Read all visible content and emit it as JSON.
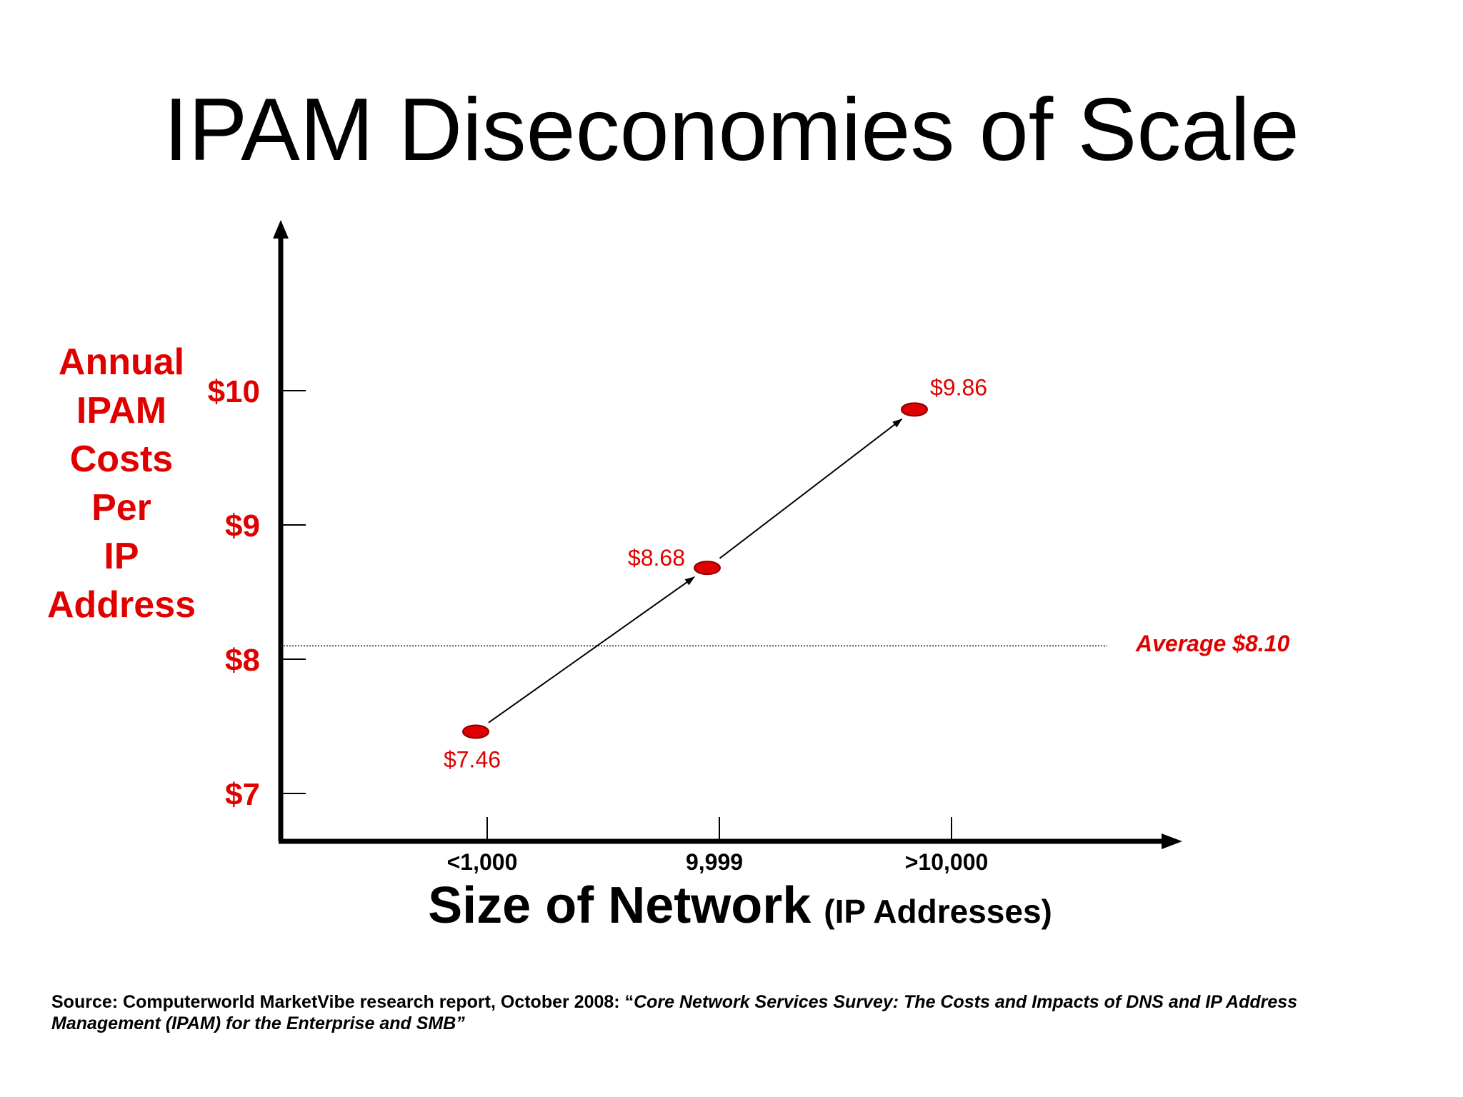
{
  "slide": {
    "title": "IPAM Diseconomies of Scale",
    "source_prefix": "Source: Computerworld MarketVibe research report, October 2008: “",
    "source_italic": "Core Network Services Survey: The Costs and Impacts of DNS and IP Address Management (IPAM) for the Enterprise and SMB",
    "source_suffix": "”"
  },
  "colors": {
    "accent_red": "#e00000",
    "axis": "#000000",
    "reference_line": "#555555"
  },
  "chart_data": {
    "type": "line",
    "title": "IPAM Diseconomies of Scale",
    "ylabel_lines": [
      "Annual",
      "IPAM",
      "Costs",
      "Per",
      "IP",
      "Address"
    ],
    "xlabel_main": "Size of Network",
    "xlabel_unit": "(IP Addresses)",
    "categories": [
      "<1,000",
      "9,999",
      ">10,000"
    ],
    "values": [
      7.46,
      8.68,
      9.86
    ],
    "data_labels": [
      "$7.46",
      "$8.68",
      "$9.86"
    ],
    "y_ticks": [
      7,
      8,
      9,
      10
    ],
    "y_tick_labels": [
      "$7",
      "$8",
      "$9",
      "$10"
    ],
    "reference_line": {
      "value": 8.1,
      "label": "Average $8.10"
    },
    "markers": "ellipse",
    "arrows_between_points": true,
    "grid": false,
    "legend": "none"
  }
}
